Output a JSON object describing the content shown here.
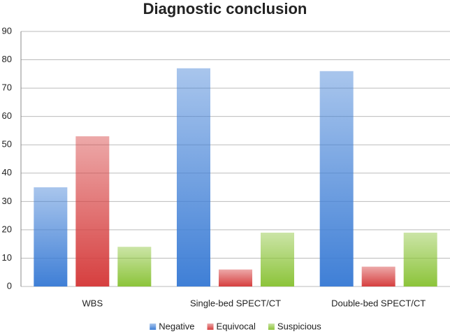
{
  "chart_data": {
    "type": "bar",
    "title": "Diagnostic conclusion",
    "categories": [
      "WBS",
      "Single-bed SPECT/CT",
      "Double-bed SPECT/CT"
    ],
    "series": [
      {
        "name": "Negative",
        "color": "#3f7fd6",
        "values": [
          35,
          77,
          76
        ]
      },
      {
        "name": "Equivocal",
        "color": "#d63f3f",
        "values": [
          53,
          6,
          7
        ]
      },
      {
        "name": "Suspicious",
        "color": "#8cc43a",
        "values": [
          14,
          19,
          19
        ]
      }
    ],
    "ylim": [
      0,
      90
    ],
    "yticks": [
      0,
      10,
      20,
      30,
      40,
      50,
      60,
      70,
      80,
      90
    ],
    "grid": true,
    "legend": "bottom"
  }
}
